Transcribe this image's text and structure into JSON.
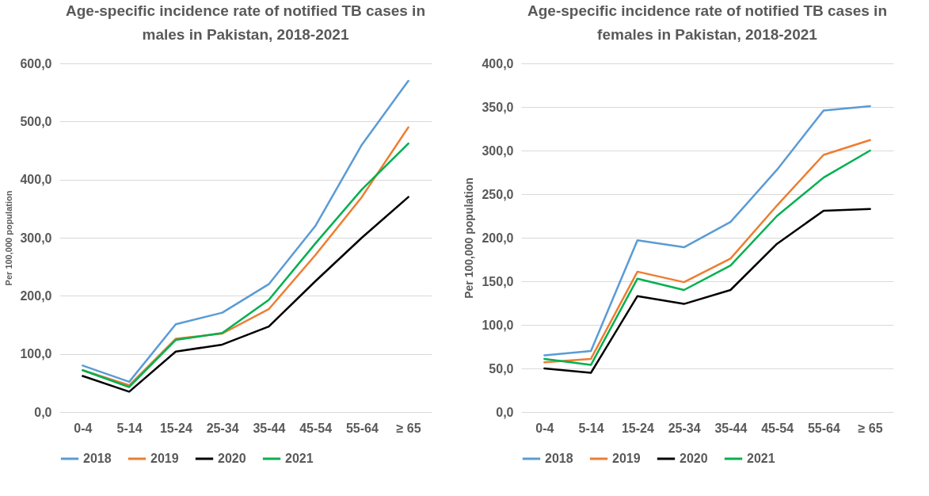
{
  "chart_data": [
    {
      "type": "line",
      "title": "Age-specific incidence rate of notified TB cases in males in Pakistan, 2018-2021",
      "ylabel": "Per 100,000 population",
      "categories": [
        "0-4",
        "5-14",
        "15-24",
        "25-34",
        "35-44",
        "45-54",
        "55-64",
        "≥ 65"
      ],
      "series": [
        {
          "name": "2018",
          "color": "#5b9bd5",
          "values": [
            80,
            52,
            151,
            171,
            220,
            320,
            460,
            570
          ]
        },
        {
          "name": "2019",
          "color": "#ed7d31",
          "values": [
            72,
            46,
            126,
            135,
            177,
            270,
            370,
            490
          ]
        },
        {
          "name": "2020",
          "color": "#000000",
          "values": [
            62,
            35,
            104,
            116,
            147,
            225,
            300,
            370
          ]
        },
        {
          "name": "2021",
          "color": "#00b050",
          "values": [
            72,
            43,
            124,
            136,
            193,
            290,
            383,
            462
          ]
        }
      ],
      "ylim": [
        0,
        600
      ],
      "yticks": [
        {
          "value": 0,
          "label": "0,0"
        },
        {
          "value": 100,
          "label": "100,0"
        },
        {
          "value": 200,
          "label": "200,0"
        },
        {
          "value": 300,
          "label": "300,0"
        },
        {
          "value": 400,
          "label": "400,0"
        },
        {
          "value": 500,
          "label": "500,0"
        },
        {
          "value": 600,
          "label": "600,0"
        }
      ],
      "grid": "y",
      "legend": "bottom",
      "marker": "none",
      "line_style": "solid"
    },
    {
      "type": "line",
      "title": "Age-specific incidence rate of notified TB cases in females in Pakistan, 2018-2021",
      "ylabel": "Per 100,000 population",
      "categories": [
        "0-4",
        "5-14",
        "15-24",
        "25-34",
        "35-44",
        "45-54",
        "55-64",
        "≥ 65"
      ],
      "series": [
        {
          "name": "2018",
          "color": "#5b9bd5",
          "values": [
            65,
            70,
            197,
            189,
            218,
            278,
            346,
            351
          ]
        },
        {
          "name": "2019",
          "color": "#ed7d31",
          "values": [
            57,
            61,
            161,
            149,
            176,
            237,
            295,
            312
          ]
        },
        {
          "name": "2020",
          "color": "#000000",
          "values": [
            50,
            45,
            133,
            124,
            140,
            193,
            231,
            233
          ]
        },
        {
          "name": "2021",
          "color": "#00b050",
          "values": [
            61,
            54,
            153,
            140,
            168,
            225,
            269,
            300
          ]
        }
      ],
      "ylim": [
        0,
        400
      ],
      "yticks": [
        {
          "value": 0,
          "label": "0,0"
        },
        {
          "value": 50,
          "label": "50,0"
        },
        {
          "value": 100,
          "label": "100,0"
        },
        {
          "value": 150,
          "label": "150,0"
        },
        {
          "value": 200,
          "label": "200,0"
        },
        {
          "value": 250,
          "label": "250,0"
        },
        {
          "value": 300,
          "label": "300,0"
        },
        {
          "value": 350,
          "label": "350,0"
        },
        {
          "value": 400,
          "label": "400,0"
        }
      ],
      "grid": "y",
      "legend": "bottom",
      "marker": "none",
      "line_style": "solid"
    }
  ]
}
